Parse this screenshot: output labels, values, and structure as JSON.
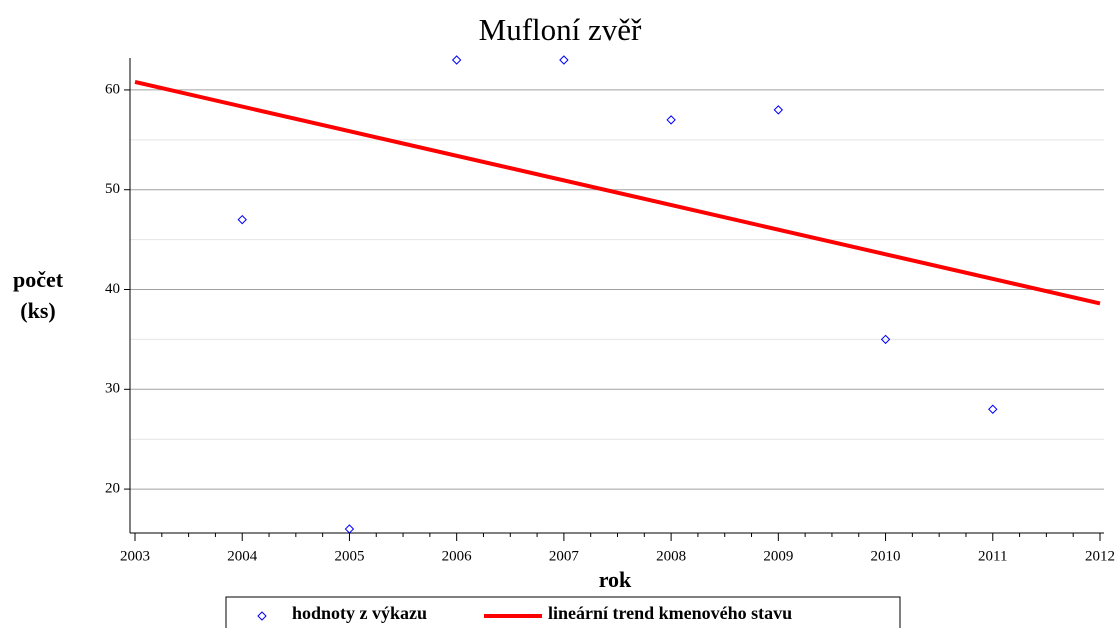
{
  "chart_data": {
    "type": "scatter",
    "title": "Mufloní zvěř",
    "xlabel": "rok",
    "ylabel": [
      "počet",
      "(ks)"
    ],
    "xlim": [
      2003,
      2012
    ],
    "xticks": [
      2003,
      2004,
      2005,
      2006,
      2007,
      2008,
      2009,
      2010,
      2011,
      2012
    ],
    "ylim": [
      15.6,
      63.2
    ],
    "yticks": [
      20,
      30,
      40,
      50,
      60
    ],
    "grid": true,
    "legend": "bottom",
    "series": [
      {
        "name": "hodnoty z výkazu",
        "color": "#0000ff",
        "type": "scatter",
        "x": [
          2004,
          2005,
          2006,
          2007,
          2008,
          2009,
          2010,
          2011
        ],
        "values": [
          47,
          16,
          63,
          63,
          57,
          58,
          35,
          28
        ]
      },
      {
        "name": "lineární trend kmenového stavu",
        "color": "#ff0000",
        "type": "line",
        "x": [
          2003,
          2012
        ],
        "values": [
          60.8,
          38.6
        ]
      }
    ]
  }
}
